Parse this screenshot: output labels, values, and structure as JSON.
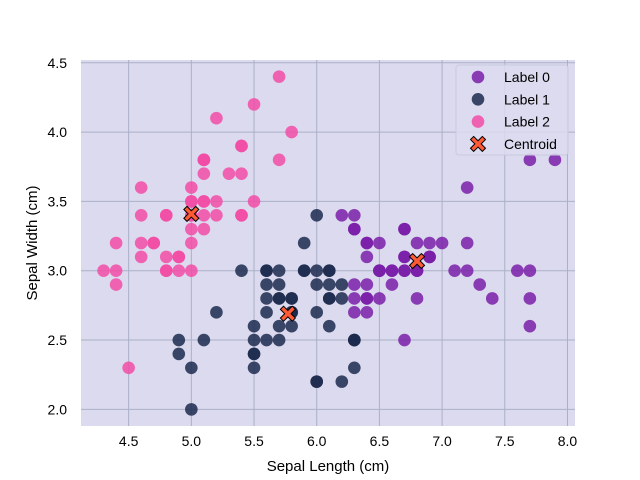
{
  "chart_data": {
    "type": "scatter",
    "title": "",
    "xlabel": "Sepal Length (cm)",
    "ylabel": "Sepal Width (cm)",
    "xlim": [
      4.12,
      8.06
    ],
    "ylim": [
      1.88,
      4.52
    ],
    "xticks": [
      4.5,
      5.0,
      5.5,
      6.0,
      6.5,
      7.0,
      7.5,
      8.0
    ],
    "xtick_labels": [
      "4.5",
      "5.0",
      "5.5",
      "6.0",
      "6.5",
      "7.0",
      "7.5",
      "8.0"
    ],
    "yticks": [
      2.0,
      2.5,
      3.0,
      3.5,
      4.0,
      4.5
    ],
    "ytick_labels": [
      "2.0",
      "2.5",
      "3.0",
      "3.5",
      "4.0",
      "4.5"
    ],
    "grid": true,
    "legend_position": "top-right",
    "background_color": "#dcdaee",
    "grid_color": "#aab0c8",
    "series": [
      {
        "name": "Label 0",
        "color": "#7a1fa8",
        "marker": "circle",
        "points": [
          [
            7.0,
            3.2
          ],
          [
            6.4,
            3.2
          ],
          [
            6.9,
            3.1
          ],
          [
            6.5,
            2.8
          ],
          [
            6.3,
            3.3
          ],
          [
            6.6,
            2.9
          ],
          [
            6.7,
            3.1
          ],
          [
            6.7,
            3.0
          ],
          [
            6.8,
            2.8
          ],
          [
            6.7,
            2.5
          ],
          [
            6.3,
            2.9
          ],
          [
            6.5,
            3.0
          ],
          [
            7.6,
            3.0
          ],
          [
            7.3,
            2.9
          ],
          [
            7.2,
            3.6
          ],
          [
            6.5,
            3.2
          ],
          [
            6.4,
            2.7
          ],
          [
            6.8,
            3.0
          ],
          [
            6.4,
            3.2
          ],
          [
            6.5,
            3.0
          ],
          [
            7.7,
            3.8
          ],
          [
            7.7,
            2.6
          ],
          [
            6.9,
            3.2
          ],
          [
            7.7,
            2.8
          ],
          [
            6.7,
            3.3
          ],
          [
            7.2,
            3.2
          ],
          [
            6.4,
            2.8
          ],
          [
            7.2,
            3.0
          ],
          [
            7.4,
            2.8
          ],
          [
            7.9,
            3.8
          ],
          [
            6.4,
            2.8
          ],
          [
            7.7,
            3.0
          ],
          [
            6.3,
            3.4
          ],
          [
            6.4,
            3.1
          ],
          [
            6.9,
            3.1
          ],
          [
            6.7,
            3.1
          ],
          [
            6.9,
            3.1
          ],
          [
            6.8,
            3.2
          ],
          [
            6.7,
            3.3
          ],
          [
            6.7,
            3.0
          ],
          [
            6.5,
            3.0
          ],
          [
            6.2,
            3.4
          ],
          [
            6.6,
            3.0
          ],
          [
            6.8,
            3.0
          ],
          [
            7.1,
            3.0
          ],
          [
            6.3,
            3.3
          ],
          [
            6.4,
            2.9
          ],
          [
            6.6,
            3.0
          ],
          [
            6.3,
            2.7
          ],
          [
            6.3,
            2.8
          ]
        ]
      },
      {
        "name": "Label 1",
        "color": "#1c2a4e",
        "marker": "circle",
        "points": [
          [
            5.5,
            2.3
          ],
          [
            5.7,
            2.8
          ],
          [
            4.9,
            2.4
          ],
          [
            5.2,
            2.7
          ],
          [
            5.0,
            2.0
          ],
          [
            5.9,
            3.0
          ],
          [
            6.0,
            2.2
          ],
          [
            6.1,
            2.9
          ],
          [
            5.6,
            2.9
          ],
          [
            5.6,
            3.0
          ],
          [
            5.8,
            2.7
          ],
          [
            6.2,
            2.2
          ],
          [
            5.6,
            2.5
          ],
          [
            5.9,
            3.2
          ],
          [
            6.1,
            2.8
          ],
          [
            6.3,
            2.5
          ],
          [
            6.1,
            2.8
          ],
          [
            6.0,
            2.9
          ],
          [
            5.7,
            2.6
          ],
          [
            5.5,
            2.4
          ],
          [
            5.5,
            2.4
          ],
          [
            5.8,
            2.7
          ],
          [
            6.0,
            2.7
          ],
          [
            5.4,
            3.0
          ],
          [
            6.0,
            3.4
          ],
          [
            6.3,
            2.3
          ],
          [
            5.6,
            3.0
          ],
          [
            5.5,
            2.5
          ],
          [
            5.5,
            2.6
          ],
          [
            6.1,
            3.0
          ],
          [
            5.8,
            2.6
          ],
          [
            5.0,
            2.3
          ],
          [
            5.6,
            2.7
          ],
          [
            5.7,
            3.0
          ],
          [
            5.7,
            2.9
          ],
          [
            6.2,
            2.9
          ],
          [
            5.1,
            2.5
          ],
          [
            5.7,
            2.8
          ],
          [
            5.8,
            2.7
          ],
          [
            6.1,
            2.6
          ],
          [
            6.3,
            2.5
          ],
          [
            6.0,
            2.2
          ],
          [
            4.9,
            2.5
          ],
          [
            5.6,
            2.8
          ],
          [
            5.8,
            2.8
          ],
          [
            6.2,
            2.8
          ],
          [
            6.1,
            3.0
          ],
          [
            6.0,
            3.0
          ],
          [
            5.9,
            3.0
          ],
          [
            6.3,
            2.5
          ],
          [
            5.7,
            2.5
          ],
          [
            5.8,
            2.8
          ]
        ]
      },
      {
        "name": "Label 2",
        "color": "#f24ca6",
        "marker": "circle",
        "points": [
          [
            5.1,
            3.5
          ],
          [
            4.9,
            3.0
          ],
          [
            4.7,
            3.2
          ],
          [
            4.6,
            3.1
          ],
          [
            5.0,
            3.6
          ],
          [
            5.4,
            3.9
          ],
          [
            4.6,
            3.4
          ],
          [
            5.0,
            3.4
          ],
          [
            4.4,
            2.9
          ],
          [
            4.9,
            3.1
          ],
          [
            5.4,
            3.7
          ],
          [
            4.8,
            3.4
          ],
          [
            4.8,
            3.0
          ],
          [
            4.3,
            3.0
          ],
          [
            5.8,
            4.0
          ],
          [
            5.7,
            4.4
          ],
          [
            5.4,
            3.9
          ],
          [
            5.1,
            3.5
          ],
          [
            5.7,
            3.8
          ],
          [
            5.1,
            3.8
          ],
          [
            5.4,
            3.4
          ],
          [
            5.1,
            3.7
          ],
          [
            4.6,
            3.6
          ],
          [
            5.1,
            3.3
          ],
          [
            4.8,
            3.4
          ],
          [
            5.0,
            3.0
          ],
          [
            5.0,
            3.4
          ],
          [
            5.2,
            3.5
          ],
          [
            5.2,
            3.4
          ],
          [
            4.7,
            3.2
          ],
          [
            4.8,
            3.1
          ],
          [
            5.4,
            3.4
          ],
          [
            5.2,
            4.1
          ],
          [
            5.5,
            4.2
          ],
          [
            4.9,
            3.1
          ],
          [
            5.0,
            3.2
          ],
          [
            5.5,
            3.5
          ],
          [
            4.4,
            3.0
          ],
          [
            5.1,
            3.4
          ],
          [
            5.0,
            3.5
          ],
          [
            4.5,
            2.3
          ],
          [
            4.4,
            3.2
          ],
          [
            5.0,
            3.5
          ],
          [
            5.1,
            3.8
          ],
          [
            4.8,
            3.0
          ],
          [
            5.1,
            3.8
          ],
          [
            4.6,
            3.2
          ],
          [
            5.3,
            3.7
          ],
          [
            5.0,
            3.3
          ]
        ]
      },
      {
        "name": "Centroid",
        "color": "#ff5a36",
        "edge_color": "#000000",
        "marker": "X",
        "points": [
          [
            6.8,
            3.07
          ],
          [
            5.77,
            2.69
          ],
          [
            5.0,
            3.41
          ]
        ]
      }
    ]
  }
}
